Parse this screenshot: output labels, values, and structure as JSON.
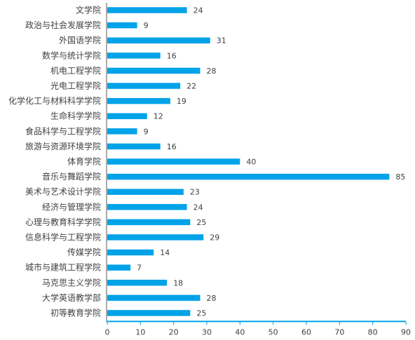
{
  "chart_data": {
    "type": "bar",
    "orientation": "horizontal",
    "categories": [
      "文学院",
      "政治与社会发展学院",
      "外国语学院",
      "数学与统计学院",
      "机电工程学院",
      "光电工程学院",
      "化学化工与材料科学学院",
      "生命科学学院",
      "食品科学与工程学院",
      "旅游与资源环境学院",
      "体育学院",
      "音乐与舞蹈学院",
      "美术与艺术设计学院",
      "经济与管理学院",
      "心理与教育科学学院",
      "信息科学与工程学院",
      "传媒学院",
      "城市与建筑工程学院",
      "马克思主义学院",
      "大学英语教学部",
      "初等教育学院"
    ],
    "values": [
      24,
      9,
      31,
      16,
      28,
      22,
      19,
      12,
      9,
      16,
      40,
      85,
      23,
      24,
      25,
      29,
      14,
      7,
      18,
      28,
      25
    ],
    "xlim": [
      0,
      90
    ],
    "xticks": [
      "0",
      "10",
      "20",
      "30",
      "40",
      "50",
      "60",
      "70",
      "80",
      "90"
    ],
    "title": "",
    "xlabel": "",
    "ylabel": "",
    "grid": false,
    "data_labels": true,
    "bar_color": "#00A2E8",
    "axis_color": "#00A2E8"
  }
}
